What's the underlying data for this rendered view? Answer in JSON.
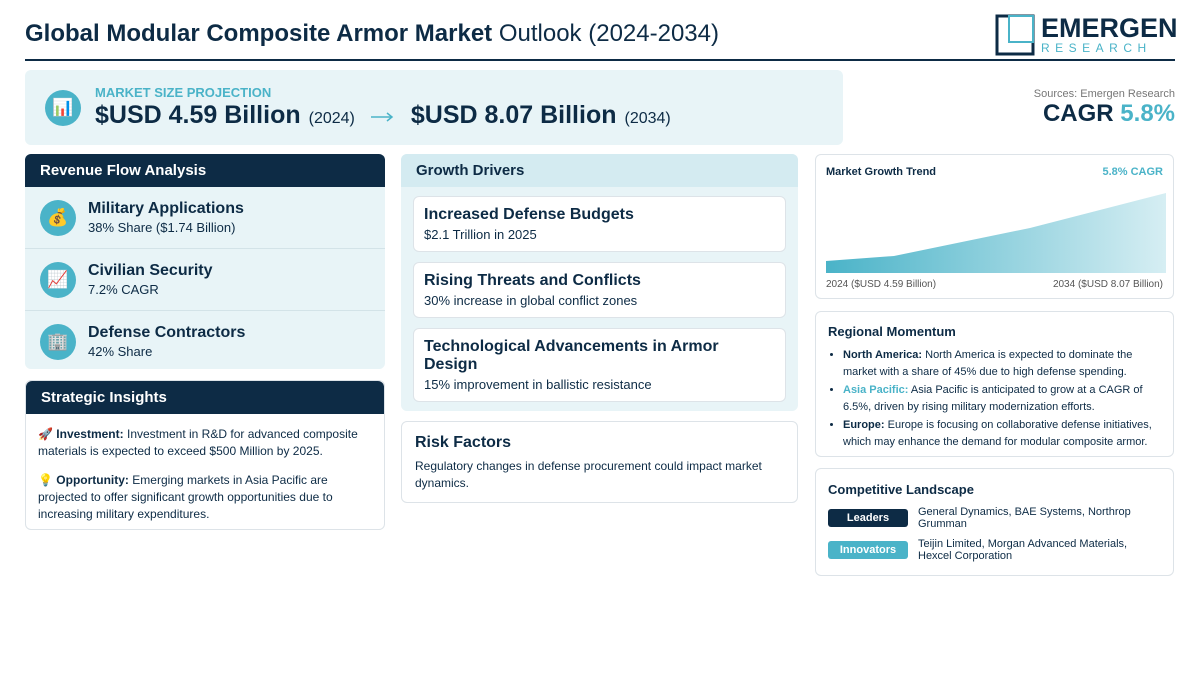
{
  "header": {
    "title_bold": "Global Modular Composite Armor Market",
    "title_rest": "Outlook (2024-2034)",
    "logo_top": "EMERGEN",
    "logo_bottom": "RESEARCH"
  },
  "projection": {
    "label": "MARKET SIZE PROJECTION",
    "start_value": "$USD 4.59 Billion",
    "start_year": "(2024)",
    "end_value": "$USD 8.07 Billion",
    "end_year": "(2034)"
  },
  "summary": {
    "sources": "Sources: Emergen Research",
    "cagr_label": "CAGR",
    "cagr_value": "5.8%"
  },
  "revenue_flow": {
    "title": "Revenue Flow Analysis",
    "items": [
      {
        "title": "Military Applications",
        "detail": "38% Share ($1.74 Billion)"
      },
      {
        "title": "Civilian Security",
        "detail": "7.2% CAGR"
      },
      {
        "title": "Defense Contractors",
        "detail": "42% Share"
      }
    ]
  },
  "strategic_insights": {
    "title": "Strategic Insights",
    "items": [
      {
        "label": "Investment:",
        "text": "Investment in R&D for advanced composite materials is expected to exceed $500 Million by 2025."
      },
      {
        "label": "Opportunity:",
        "text": "Emerging markets in Asia Pacific are projected to offer significant growth opportunities due to increasing military expenditures."
      }
    ]
  },
  "growth_drivers": {
    "title": "Growth Drivers",
    "items": [
      {
        "title": "Increased Defense Budgets",
        "detail": "$2.1 Trillion in 2025"
      },
      {
        "title": "Rising Threats and Conflicts",
        "detail": "30% increase in global conflict zones"
      },
      {
        "title": "Technological Advancements in Armor Design",
        "detail": "15% improvement in ballistic resistance"
      }
    ]
  },
  "risk_factors": {
    "title": "Risk Factors",
    "text": "Regulatory changes in defense procurement could impact market dynamics."
  },
  "trend": {
    "title": "Market Growth Trend",
    "cagr": "5.8% CAGR",
    "start_label": "2024 ($USD 4.59 Billion)",
    "end_label": "2034 ($USD 8.07 Billion)"
  },
  "regional_momentum": {
    "title": "Regional Momentum",
    "items": [
      {
        "region": "North America:",
        "text": "North America is expected to dominate the market with a share of 45% due to high defense spending."
      },
      {
        "region": "Asia Pacific:",
        "text": "Asia Pacific is anticipated to grow at a CAGR of 6.5%, driven by rising military modernization efforts."
      },
      {
        "region": "Europe:",
        "text": "Europe is focusing on collaborative defense initiatives, which may enhance the demand for modular composite armor."
      }
    ]
  },
  "competitive_landscape": {
    "title": "Competitive Landscape",
    "rows": [
      {
        "badge": "Leaders",
        "text": "General Dynamics, BAE Systems, Northrop Grumman"
      },
      {
        "badge": "Innovators",
        "text": "Teijin Limited, Morgan Advanced Materials, Hexcel Corporation"
      }
    ]
  }
}
